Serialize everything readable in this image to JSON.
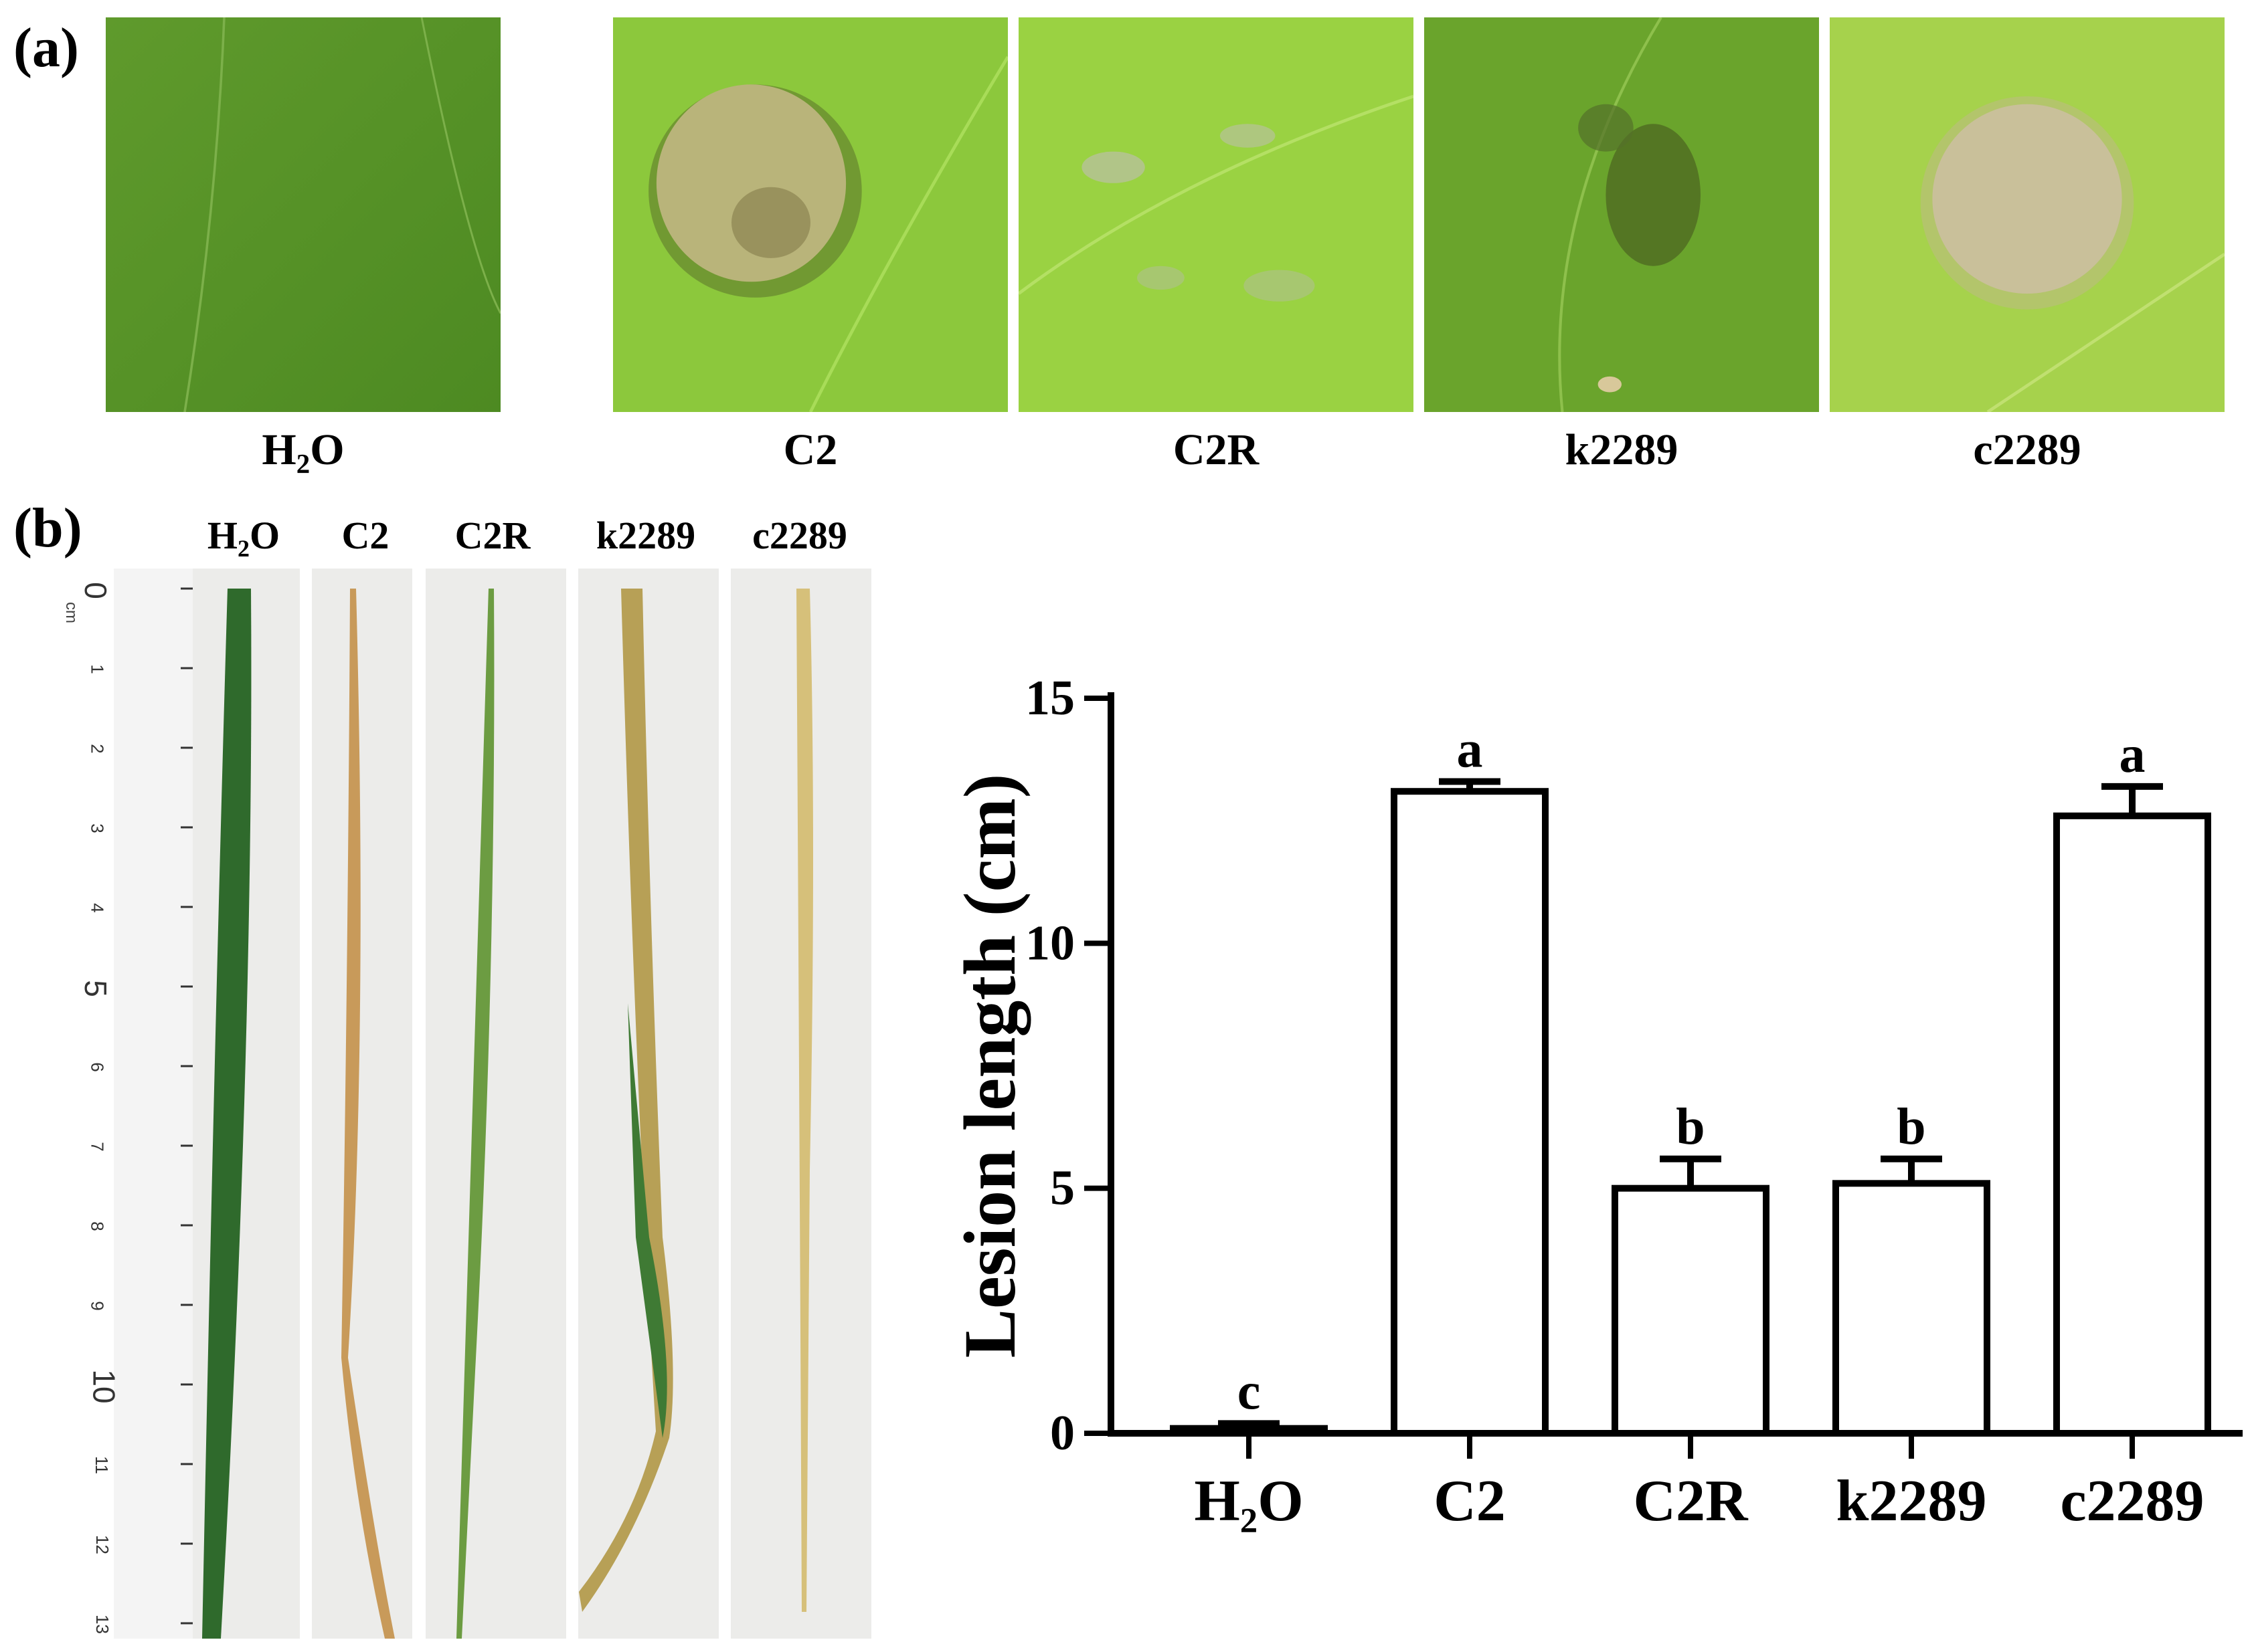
{
  "panel_a": {
    "label": "(a)",
    "images": [
      {
        "caption_main": "H",
        "caption_sub": "2",
        "caption_rest": "O",
        "icon": "leaf-photo-no-lesion"
      },
      {
        "caption": "C2",
        "icon": "leaf-photo-large-lesion"
      },
      {
        "caption": "C2R",
        "icon": "leaf-photo-small-lesion"
      },
      {
        "caption": "k2289",
        "icon": "leaf-photo-small-lesion"
      },
      {
        "caption": "c2289",
        "icon": "leaf-photo-large-lesion"
      }
    ]
  },
  "panel_b": {
    "label": "(b)",
    "leaf_labels": [
      {
        "main": "H",
        "sub": "2",
        "rest": "O"
      },
      {
        "main": "C2",
        "sub": "",
        "rest": ""
      },
      {
        "main": "C2R",
        "sub": "",
        "rest": ""
      },
      {
        "main": "k2289",
        "sub": "",
        "rest": ""
      },
      {
        "main": "c2289",
        "sub": "",
        "rest": ""
      }
    ],
    "ruler": {
      "unit": "cm",
      "numbers": [
        "0",
        "1",
        "2",
        "3",
        "4",
        "5",
        "6",
        "7",
        "8",
        "9",
        "10",
        "11",
        "12",
        "13"
      ]
    }
  },
  "chart_data": {
    "type": "bar",
    "categories": [
      "H₂O",
      "C2",
      "C2R",
      "k2289",
      "c2289"
    ],
    "values": [
      0.1,
      13.1,
      5.0,
      5.1,
      12.6
    ],
    "errors": [
      0.1,
      0.2,
      0.6,
      0.5,
      0.6
    ],
    "significance": [
      "c",
      "a",
      "b",
      "b",
      "a"
    ],
    "ylabel": "Lesion length (cm)",
    "xlabel": "",
    "ylim": [
      0,
      15
    ],
    "yticks": [
      0,
      5,
      10,
      15
    ],
    "bar_fill": "#ffffff",
    "bar_stroke": "#000000"
  }
}
